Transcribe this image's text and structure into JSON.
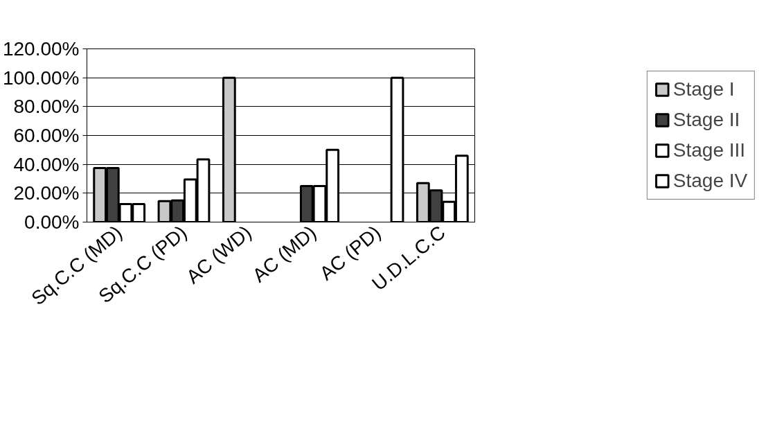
{
  "chart_data": {
    "type": "bar",
    "categories": [
      "Sq.C.C (MD)",
      "Sq.C.C (PD)",
      "AC (WD)",
      "AC (MD)",
      "AC (PD)",
      "U.D.L.C.C"
    ],
    "series": [
      {
        "name": "Stage I",
        "color": "#c8c8c8",
        "values": [
          37.5,
          14.5,
          100,
          null,
          null,
          27
        ]
      },
      {
        "name": "Stage II",
        "color": "#404040",
        "values": [
          37.5,
          15,
          null,
          25,
          null,
          22
        ]
      },
      {
        "name": "Stage III",
        "color": "#ffffff",
        "values": [
          12.5,
          29.5,
          null,
          25,
          null,
          14
        ]
      },
      {
        "name": "Stage IV",
        "color": "#ffffff",
        "values": [
          12.5,
          43.5,
          null,
          50,
          100,
          46
        ]
      }
    ],
    "ylim": [
      0,
      120
    ],
    "yticks": [
      {
        "value": 0,
        "label": "0.00%"
      },
      {
        "value": 20,
        "label": "20.00%"
      },
      {
        "value": 40,
        "label": "40.00%"
      },
      {
        "value": 60,
        "label": "60.00%"
      },
      {
        "value": 80,
        "label": "80.00%"
      },
      {
        "value": 100,
        "label": "100.00%"
      },
      {
        "value": 120,
        "label": "120.00%"
      }
    ],
    "grid": "y",
    "legend": "right"
  }
}
